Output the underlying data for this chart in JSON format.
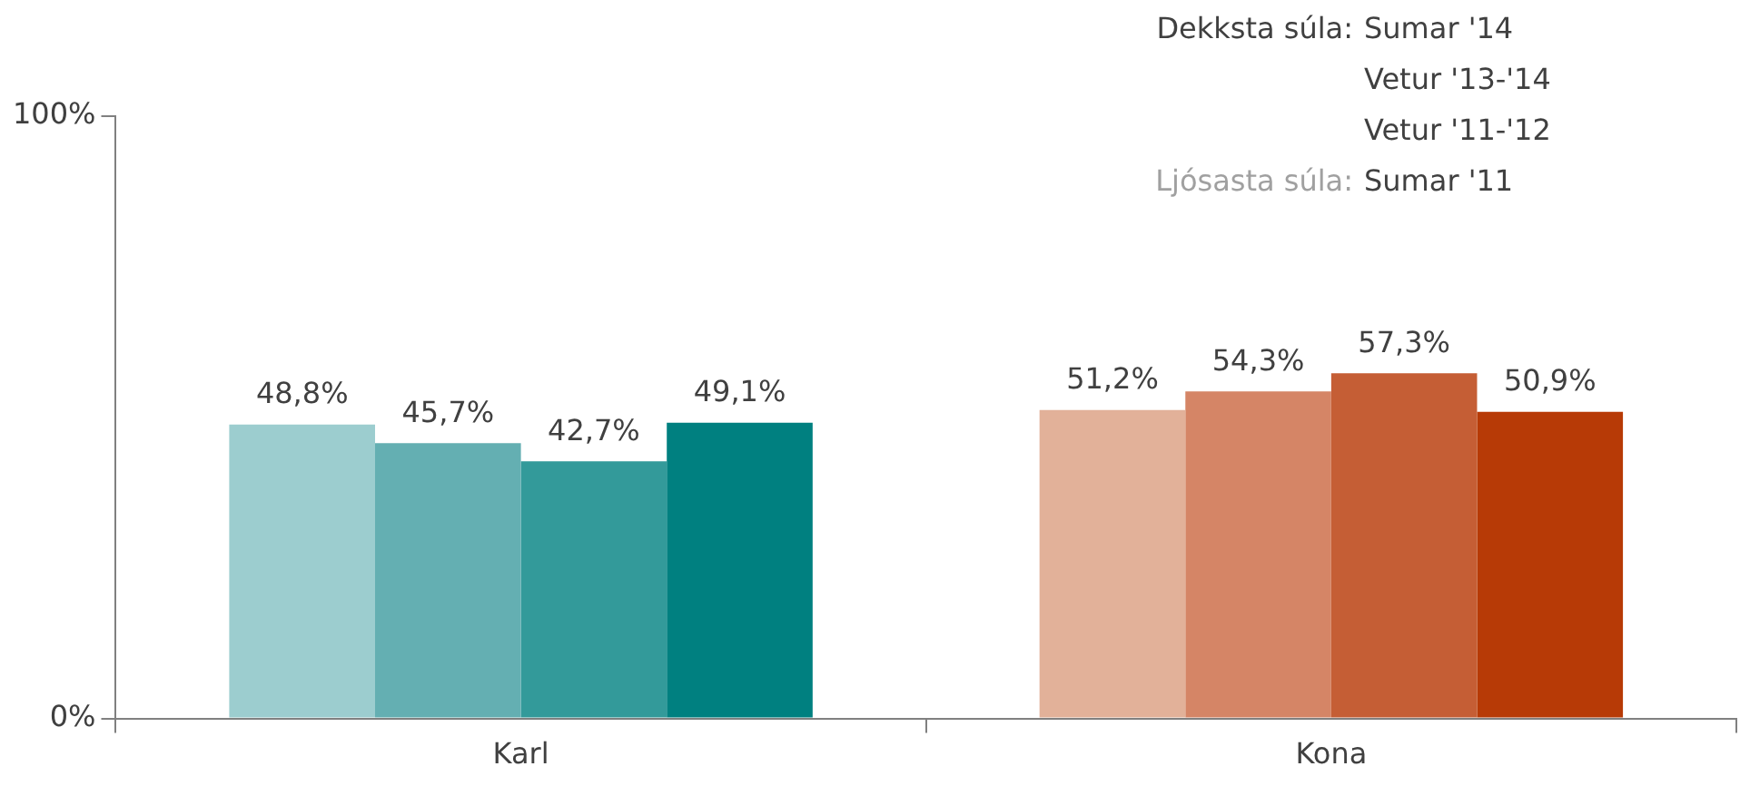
{
  "chart_data": {
    "type": "bar",
    "categories": [
      "Karl",
      "Kona"
    ],
    "series": [
      {
        "colors": [
          "#9ccdcf",
          "#e2b199"
        ],
        "values": [
          48.8,
          51.2
        ],
        "value_labels": [
          "48,8%",
          "51,2%"
        ]
      },
      {
        "colors": [
          "#64afb2",
          "#d58566"
        ],
        "values": [
          45.7,
          54.3
        ],
        "value_labels": [
          "45,7%",
          "54,3%"
        ]
      },
      {
        "colors": [
          "#339a9a",
          "#c55e35"
        ],
        "values": [
          42.7,
          57.3
        ],
        "value_labels": [
          "42,7%",
          "57,3%"
        ]
      },
      {
        "colors": [
          "#008080",
          "#b73a06"
        ],
        "values": [
          49.1,
          50.9
        ],
        "value_labels": [
          "49,1%",
          "50,9%"
        ]
      }
    ],
    "ylim": [
      0,
      100
    ],
    "yticks": [
      {
        "value": 0,
        "label": "0%"
      },
      {
        "value": 100,
        "label": "100%"
      }
    ],
    "grid": false,
    "annotations": [
      "Dekksta súla:",
      "Sumar '14",
      "Vetur '13-'14",
      "Vetur '11-'12",
      "Ljósasta súla:",
      "Sumar '11"
    ]
  }
}
